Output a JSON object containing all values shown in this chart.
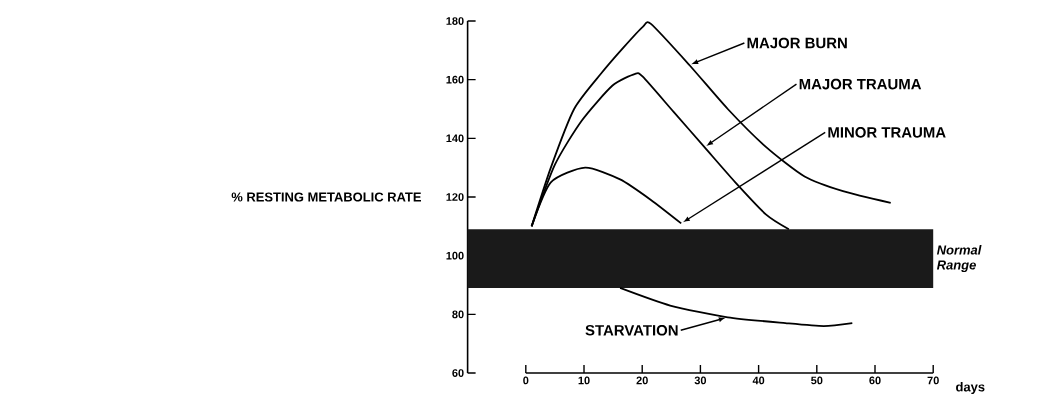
{
  "chart_data": {
    "type": "line",
    "ylabel": "% RESTING METABOLIC RATE",
    "xlabel": "days",
    "xlim": [
      -10,
      70
    ],
    "ylim": [
      60,
      180
    ],
    "xticks": [
      0,
      10,
      20,
      30,
      40,
      50,
      60,
      70
    ],
    "yticks": [
      60,
      80,
      100,
      120,
      140,
      160,
      180
    ],
    "grid": false,
    "marker": "none",
    "line_style": "solid",
    "series": [
      {
        "name": "MAJOR BURN",
        "color": "#000000",
        "x": [
          1,
          4.3,
          8.3,
          12.9,
          16.8,
          20.1,
          21.5,
          28.1,
          34.7,
          41.3,
          47.9,
          54.5,
          62.7
        ],
        "values": [
          110,
          130,
          150,
          162,
          171,
          178,
          179,
          165,
          150,
          137,
          127,
          122,
          118
        ]
      },
      {
        "name": "MAJOR TRAUMA",
        "color": "#000000",
        "x": [
          1,
          5,
          9.6,
          14.9,
          18.8,
          20.1,
          25.4,
          30.7,
          36,
          41.3,
          45.2
        ],
        "values": [
          110,
          131,
          146,
          158,
          162,
          161,
          149,
          137,
          125,
          114,
          109
        ]
      },
      {
        "name": "MINOR TRAUMA",
        "color": "#000000",
        "x": [
          1,
          4.3,
          10.2,
          16.2,
          21.5,
          26.7
        ],
        "values": [
          110,
          125,
          130,
          126,
          119,
          111
        ]
      },
      {
        "name": "STARVATION",
        "color": "#000000",
        "x": [
          16.2,
          24.8,
          34.7,
          44.6,
          51.2,
          56.1
        ],
        "values": [
          89,
          83,
          79,
          77,
          76,
          77
        ]
      }
    ],
    "bands": [
      {
        "axis": "y",
        "from": 89,
        "to": 109,
        "label": "Normal Range",
        "color": "#1a1a1a"
      }
    ]
  }
}
